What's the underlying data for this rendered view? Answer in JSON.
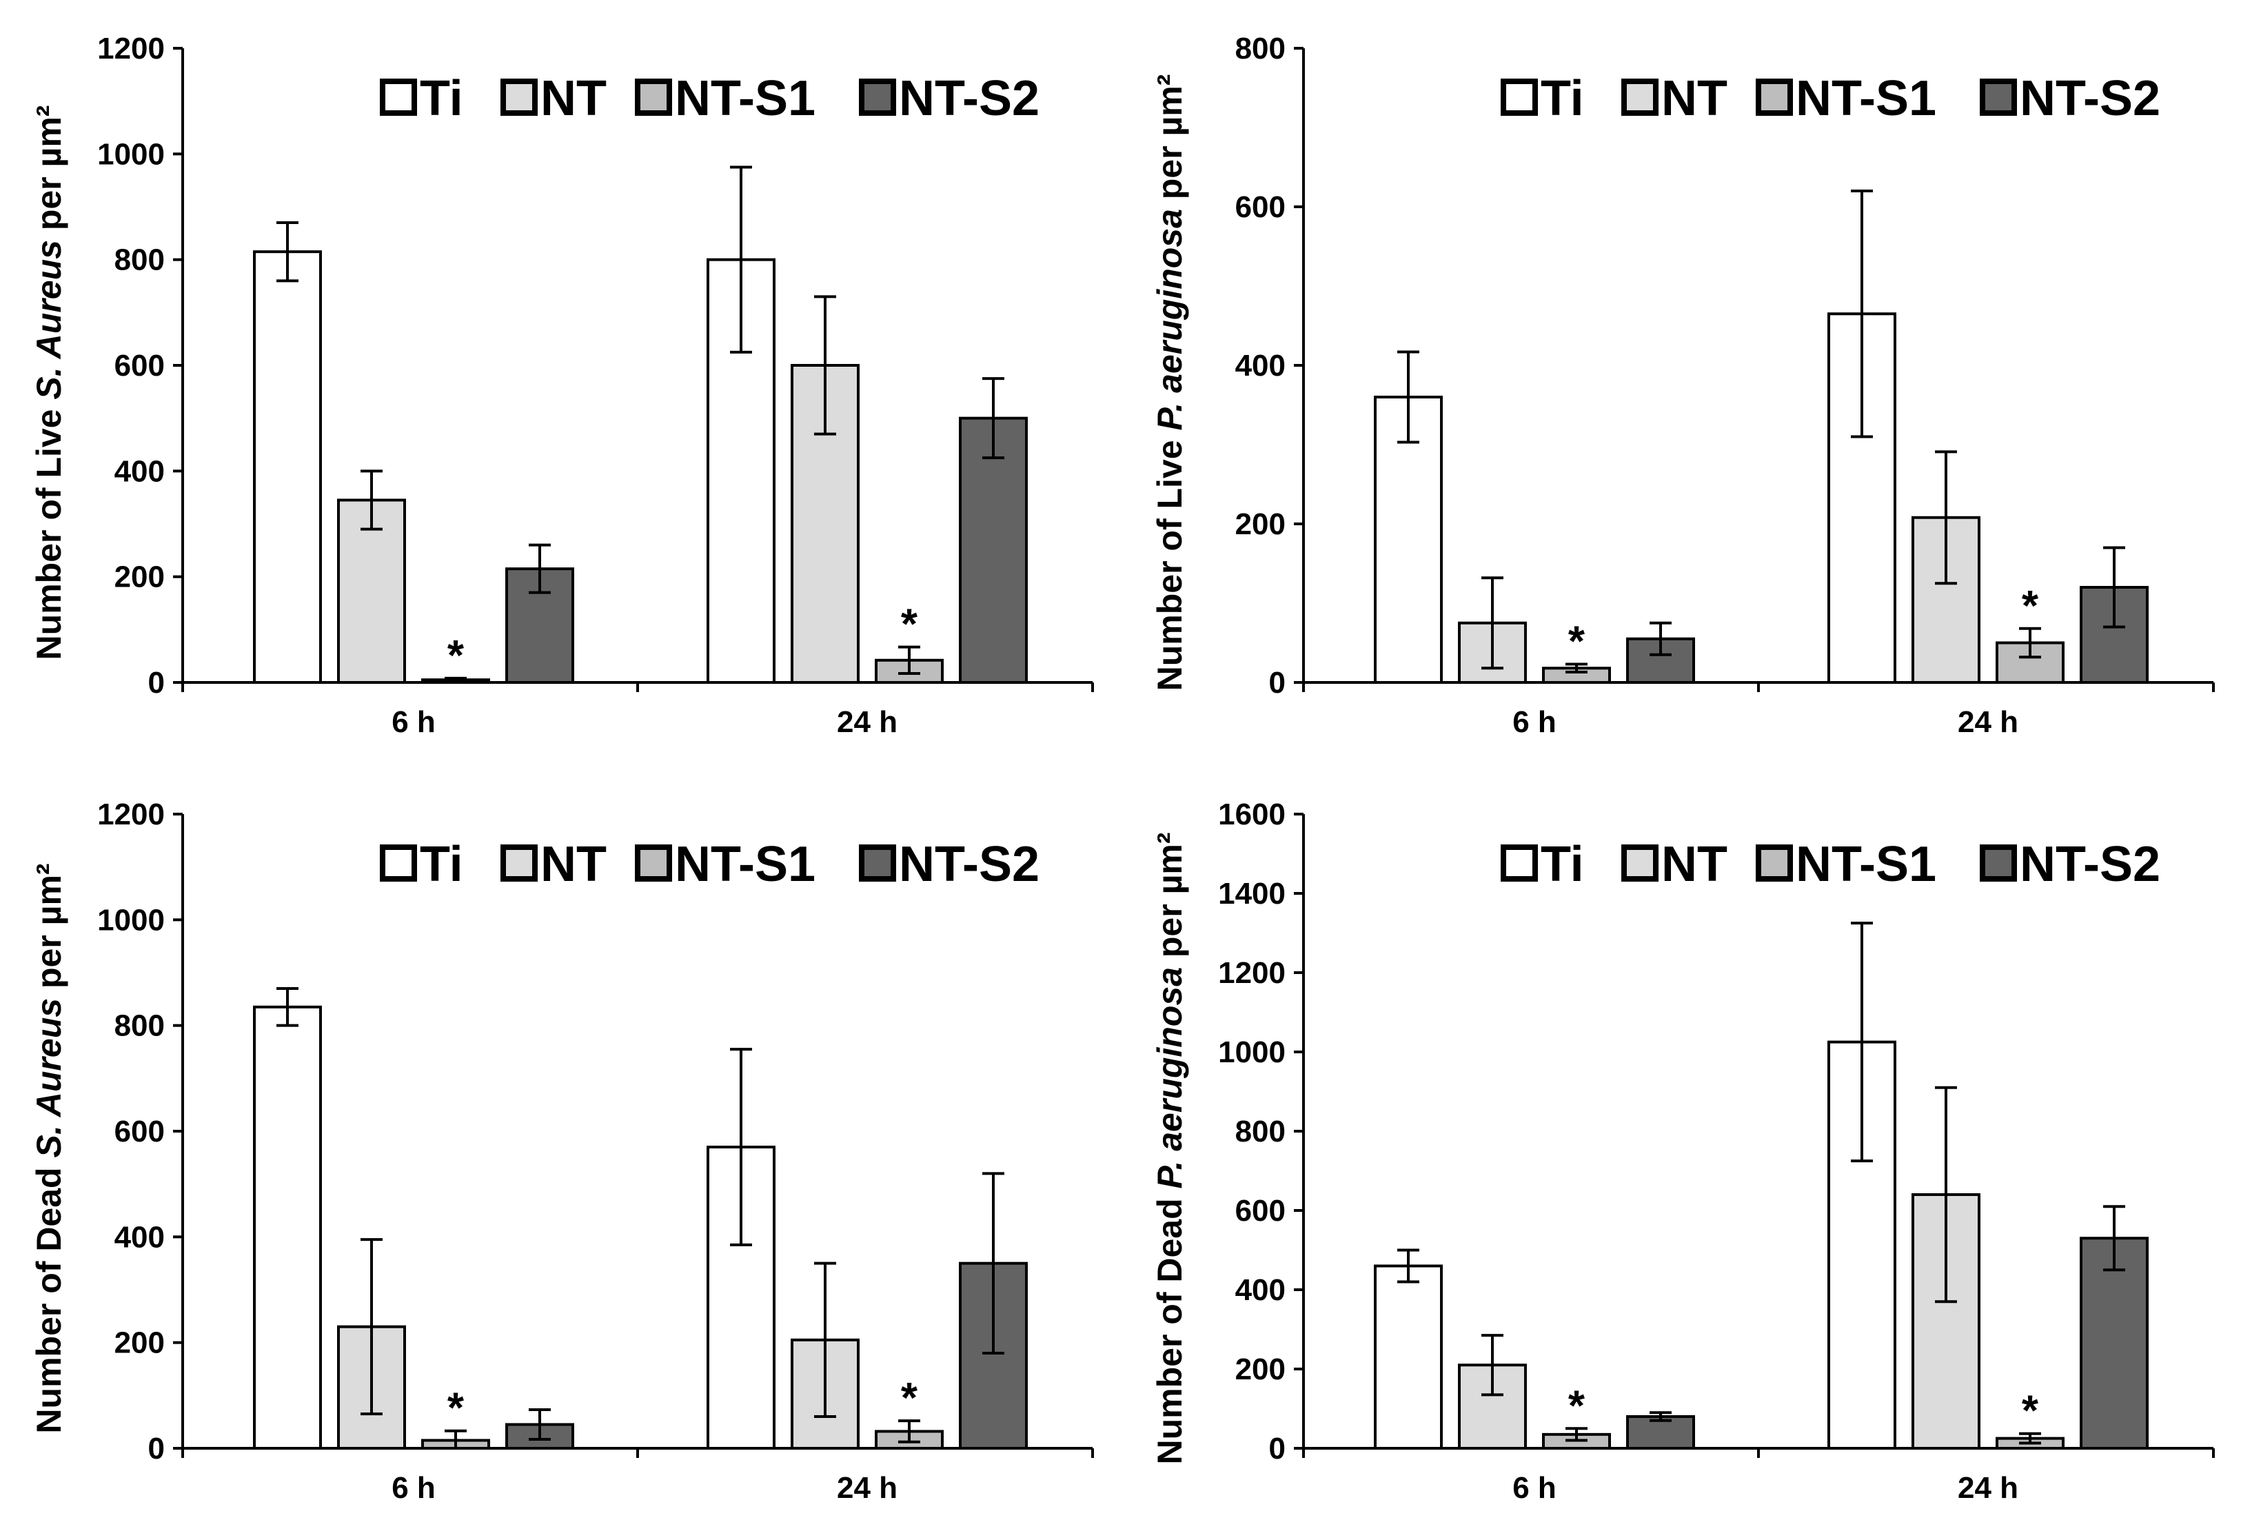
{
  "legend": [
    "Ti",
    "NT",
    "NT-S1",
    "NT-S2"
  ],
  "colors": {
    "Ti": "#ffffff",
    "NT": "#dcdcdc",
    "NT-S1": "#bdbdbd",
    "NT-S2": "#636363",
    "axis": "#000000"
  },
  "chart_data": [
    {
      "type": "bar",
      "ylabel": {
        "prefix": "Number of Live ",
        "species": "S. Aureus",
        "suffix": " per µm²"
      },
      "categories": [
        "6 h",
        "24 h"
      ],
      "ylim": [
        0,
        1200
      ],
      "yticks": [
        0,
        200,
        400,
        600,
        800,
        1000,
        1200
      ],
      "series": [
        {
          "name": "Ti",
          "values": [
            815,
            800
          ],
          "errors": [
            55,
            175
          ]
        },
        {
          "name": "NT",
          "values": [
            345,
            600
          ],
          "errors": [
            55,
            130
          ]
        },
        {
          "name": "NT-S1",
          "values": [
            5,
            42
          ],
          "errors": [
            3,
            25
          ],
          "significant": [
            true,
            true
          ]
        },
        {
          "name": "NT-S2",
          "values": [
            215,
            500
          ],
          "errors": [
            45,
            75
          ]
        }
      ]
    },
    {
      "type": "bar",
      "ylabel": {
        "prefix": "Number  of Live ",
        "species": "P. aeruginosa",
        "suffix": "  per µm²"
      },
      "categories": [
        "6 h",
        "24 h"
      ],
      "ylim": [
        0,
        800
      ],
      "yticks": [
        0,
        200,
        400,
        600,
        800
      ],
      "series": [
        {
          "name": "Ti",
          "values": [
            360,
            465
          ],
          "errors": [
            57,
            155
          ]
        },
        {
          "name": "NT",
          "values": [
            75,
            208
          ],
          "errors": [
            57,
            83
          ]
        },
        {
          "name": "NT-S1",
          "values": [
            18,
            50
          ],
          "errors": [
            5,
            18
          ],
          "significant": [
            true,
            true
          ]
        },
        {
          "name": "NT-S2",
          "values": [
            55,
            120
          ],
          "errors": [
            20,
            50
          ]
        }
      ]
    },
    {
      "type": "bar",
      "ylabel": {
        "prefix": "Number of Dead ",
        "species": "S. Aureus",
        "suffix": " per µm²"
      },
      "categories": [
        "6 h",
        "24 h"
      ],
      "ylim": [
        0,
        1200
      ],
      "yticks": [
        0,
        200,
        400,
        600,
        800,
        1000,
        1200
      ],
      "series": [
        {
          "name": "Ti",
          "values": [
            835,
            570
          ],
          "errors": [
            35,
            185
          ]
        },
        {
          "name": "NT",
          "values": [
            230,
            205
          ],
          "errors": [
            165,
            145
          ]
        },
        {
          "name": "NT-S1",
          "values": [
            15,
            32
          ],
          "errors": [
            18,
            20
          ],
          "significant": [
            true,
            true
          ]
        },
        {
          "name": "NT-S2",
          "values": [
            45,
            350
          ],
          "errors": [
            28,
            170
          ]
        }
      ]
    },
    {
      "type": "bar",
      "ylabel": {
        "prefix": "Number  of Dead ",
        "species": "P. aeruginosa",
        "suffix": "  per µm²"
      },
      "categories": [
        "6 h",
        "24 h"
      ],
      "ylim": [
        0,
        1600
      ],
      "yticks": [
        0,
        200,
        400,
        600,
        800,
        1000,
        1200,
        1400,
        1600
      ],
      "series": [
        {
          "name": "Ti",
          "values": [
            460,
            1025
          ],
          "errors": [
            40,
            300
          ]
        },
        {
          "name": "NT",
          "values": [
            210,
            640
          ],
          "errors": [
            75,
            270
          ]
        },
        {
          "name": "NT-S1",
          "values": [
            35,
            25
          ],
          "errors": [
            15,
            12
          ],
          "significant": [
            true,
            true
          ]
        },
        {
          "name": "NT-S2",
          "values": [
            80,
            530
          ],
          "errors": [
            10,
            80
          ]
        }
      ]
    }
  ]
}
